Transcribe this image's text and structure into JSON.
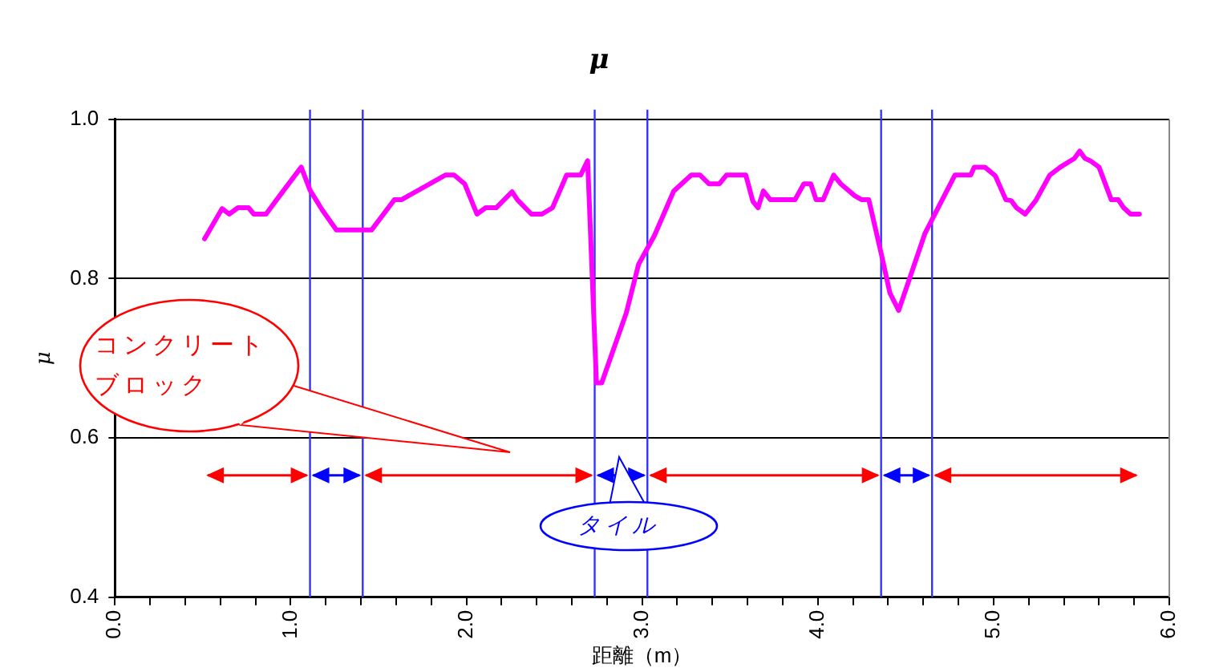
{
  "chart_data": {
    "type": "line",
    "title": "μ",
    "xlabel": "距離（m）",
    "ylabel": "μ",
    "annotations": [
      "コンクリートブロック",
      "タイル"
    ],
    "xlim": [
      0,
      6
    ],
    "ylim": [
      0.4,
      1.0
    ],
    "xticks": [
      {
        "value": 0,
        "label": "0.0"
      },
      {
        "value": 0.2,
        "label": null
      },
      {
        "value": 0.4,
        "label": null
      },
      {
        "value": 0.6,
        "label": null
      },
      {
        "value": 0.8,
        "label": null
      },
      {
        "value": 1,
        "label": "1.0"
      },
      {
        "value": 1.2,
        "label": null
      },
      {
        "value": 1.4,
        "label": null
      },
      {
        "value": 1.6,
        "label": null
      },
      {
        "value": 1.8,
        "label": null
      },
      {
        "value": 2,
        "label": "2.0"
      },
      {
        "value": 2.2,
        "label": null
      },
      {
        "value": 2.4,
        "label": null
      },
      {
        "value": 2.6,
        "label": null
      },
      {
        "value": 2.8,
        "label": null
      },
      {
        "value": 3,
        "label": "3.0"
      },
      {
        "value": 3.2,
        "label": null
      },
      {
        "value": 3.4,
        "label": null
      },
      {
        "value": 3.6,
        "label": null
      },
      {
        "value": 3.8,
        "label": null
      },
      {
        "value": 4,
        "label": "4.0"
      },
      {
        "value": 4.2,
        "label": null
      },
      {
        "value": 4.4,
        "label": null
      },
      {
        "value": 4.6,
        "label": null
      },
      {
        "value": 4.8,
        "label": null
      },
      {
        "value": 5,
        "label": "5.0"
      },
      {
        "value": 5.2,
        "label": null
      },
      {
        "value": 5.4,
        "label": null
      },
      {
        "value": 5.6,
        "label": null
      },
      {
        "value": 5.8,
        "label": null
      },
      {
        "value": 6,
        "label": "6.0"
      }
    ],
    "yticks": [
      {
        "value": 0.4,
        "label": "0.4"
      },
      {
        "value": 0.6,
        "label": "0.6"
      },
      {
        "value": 0.8,
        "label": "0.8"
      },
      {
        "value": 1.0,
        "label": "1.0"
      }
    ],
    "grid": "y",
    "legend": false,
    "marker": "none",
    "line_style": "solid",
    "series": [
      {
        "color": "#ff00ff",
        "x": [
          0.51,
          0.61,
          0.65,
          0.7,
          0.76,
          0.79,
          0.86,
          0.92,
          1.06,
          1.11,
          1.18,
          1.26,
          1.46,
          1.59,
          1.63,
          1.88,
          1.93,
          1.99,
          2.06,
          2.11,
          2.17,
          2.26,
          2.29,
          2.37,
          2.43,
          2.49,
          2.57,
          2.65,
          2.69,
          2.74,
          2.77,
          2.91,
          2.98,
          3.07,
          3.18,
          3.28,
          3.33,
          3.38,
          3.44,
          3.48,
          3.59,
          3.63,
          3.66,
          3.69,
          3.73,
          3.87,
          3.92,
          3.96,
          3.99,
          4.03,
          4.09,
          4.13,
          4.21,
          4.25,
          4.29,
          4.36,
          4.41,
          4.46,
          4.61,
          4.78,
          4.87,
          4.89,
          4.95,
          5.01,
          5.07,
          5.1,
          5.13,
          5.18,
          5.24,
          5.32,
          5.38,
          5.46,
          5.49,
          5.52,
          5.55,
          5.6,
          5.67,
          5.71,
          5.74,
          5.78,
          5.83
        ],
        "values": [
          0.85,
          0.888,
          0.881,
          0.889,
          0.889,
          0.881,
          0.881,
          0.899,
          0.94,
          0.911,
          0.886,
          0.861,
          0.861,
          0.899,
          0.899,
          0.93,
          0.93,
          0.919,
          0.881,
          0.889,
          0.889,
          0.909,
          0.899,
          0.881,
          0.881,
          0.889,
          0.93,
          0.93,
          0.948,
          0.669,
          0.669,
          0.757,
          0.818,
          0.854,
          0.91,
          0.93,
          0.93,
          0.919,
          0.919,
          0.93,
          0.93,
          0.897,
          0.889,
          0.91,
          0.899,
          0.899,
          0.919,
          0.919,
          0.899,
          0.899,
          0.93,
          0.919,
          0.904,
          0.899,
          0.899,
          0.832,
          0.782,
          0.76,
          0.857,
          0.93,
          0.93,
          0.94,
          0.94,
          0.929,
          0.899,
          0.898,
          0.889,
          0.881,
          0.898,
          0.93,
          0.94,
          0.951,
          0.96,
          0.951,
          0.948,
          0.94,
          0.899,
          0.899,
          0.889,
          0.881,
          0.881
        ]
      }
    ],
    "ref_lines": [
      {
        "axis": "x",
        "value": 1.11,
        "color": "#3333ff"
      },
      {
        "axis": "x",
        "value": 1.41,
        "color": "#3333ff"
      },
      {
        "axis": "x",
        "value": 2.73,
        "color": "#3333ff"
      },
      {
        "axis": "x",
        "value": 3.03,
        "color": "#3333ff"
      },
      {
        "axis": "x",
        "value": 4.36,
        "color": "#3333ff"
      },
      {
        "axis": "x",
        "value": 4.65,
        "color": "#3333ff"
      }
    ]
  }
}
